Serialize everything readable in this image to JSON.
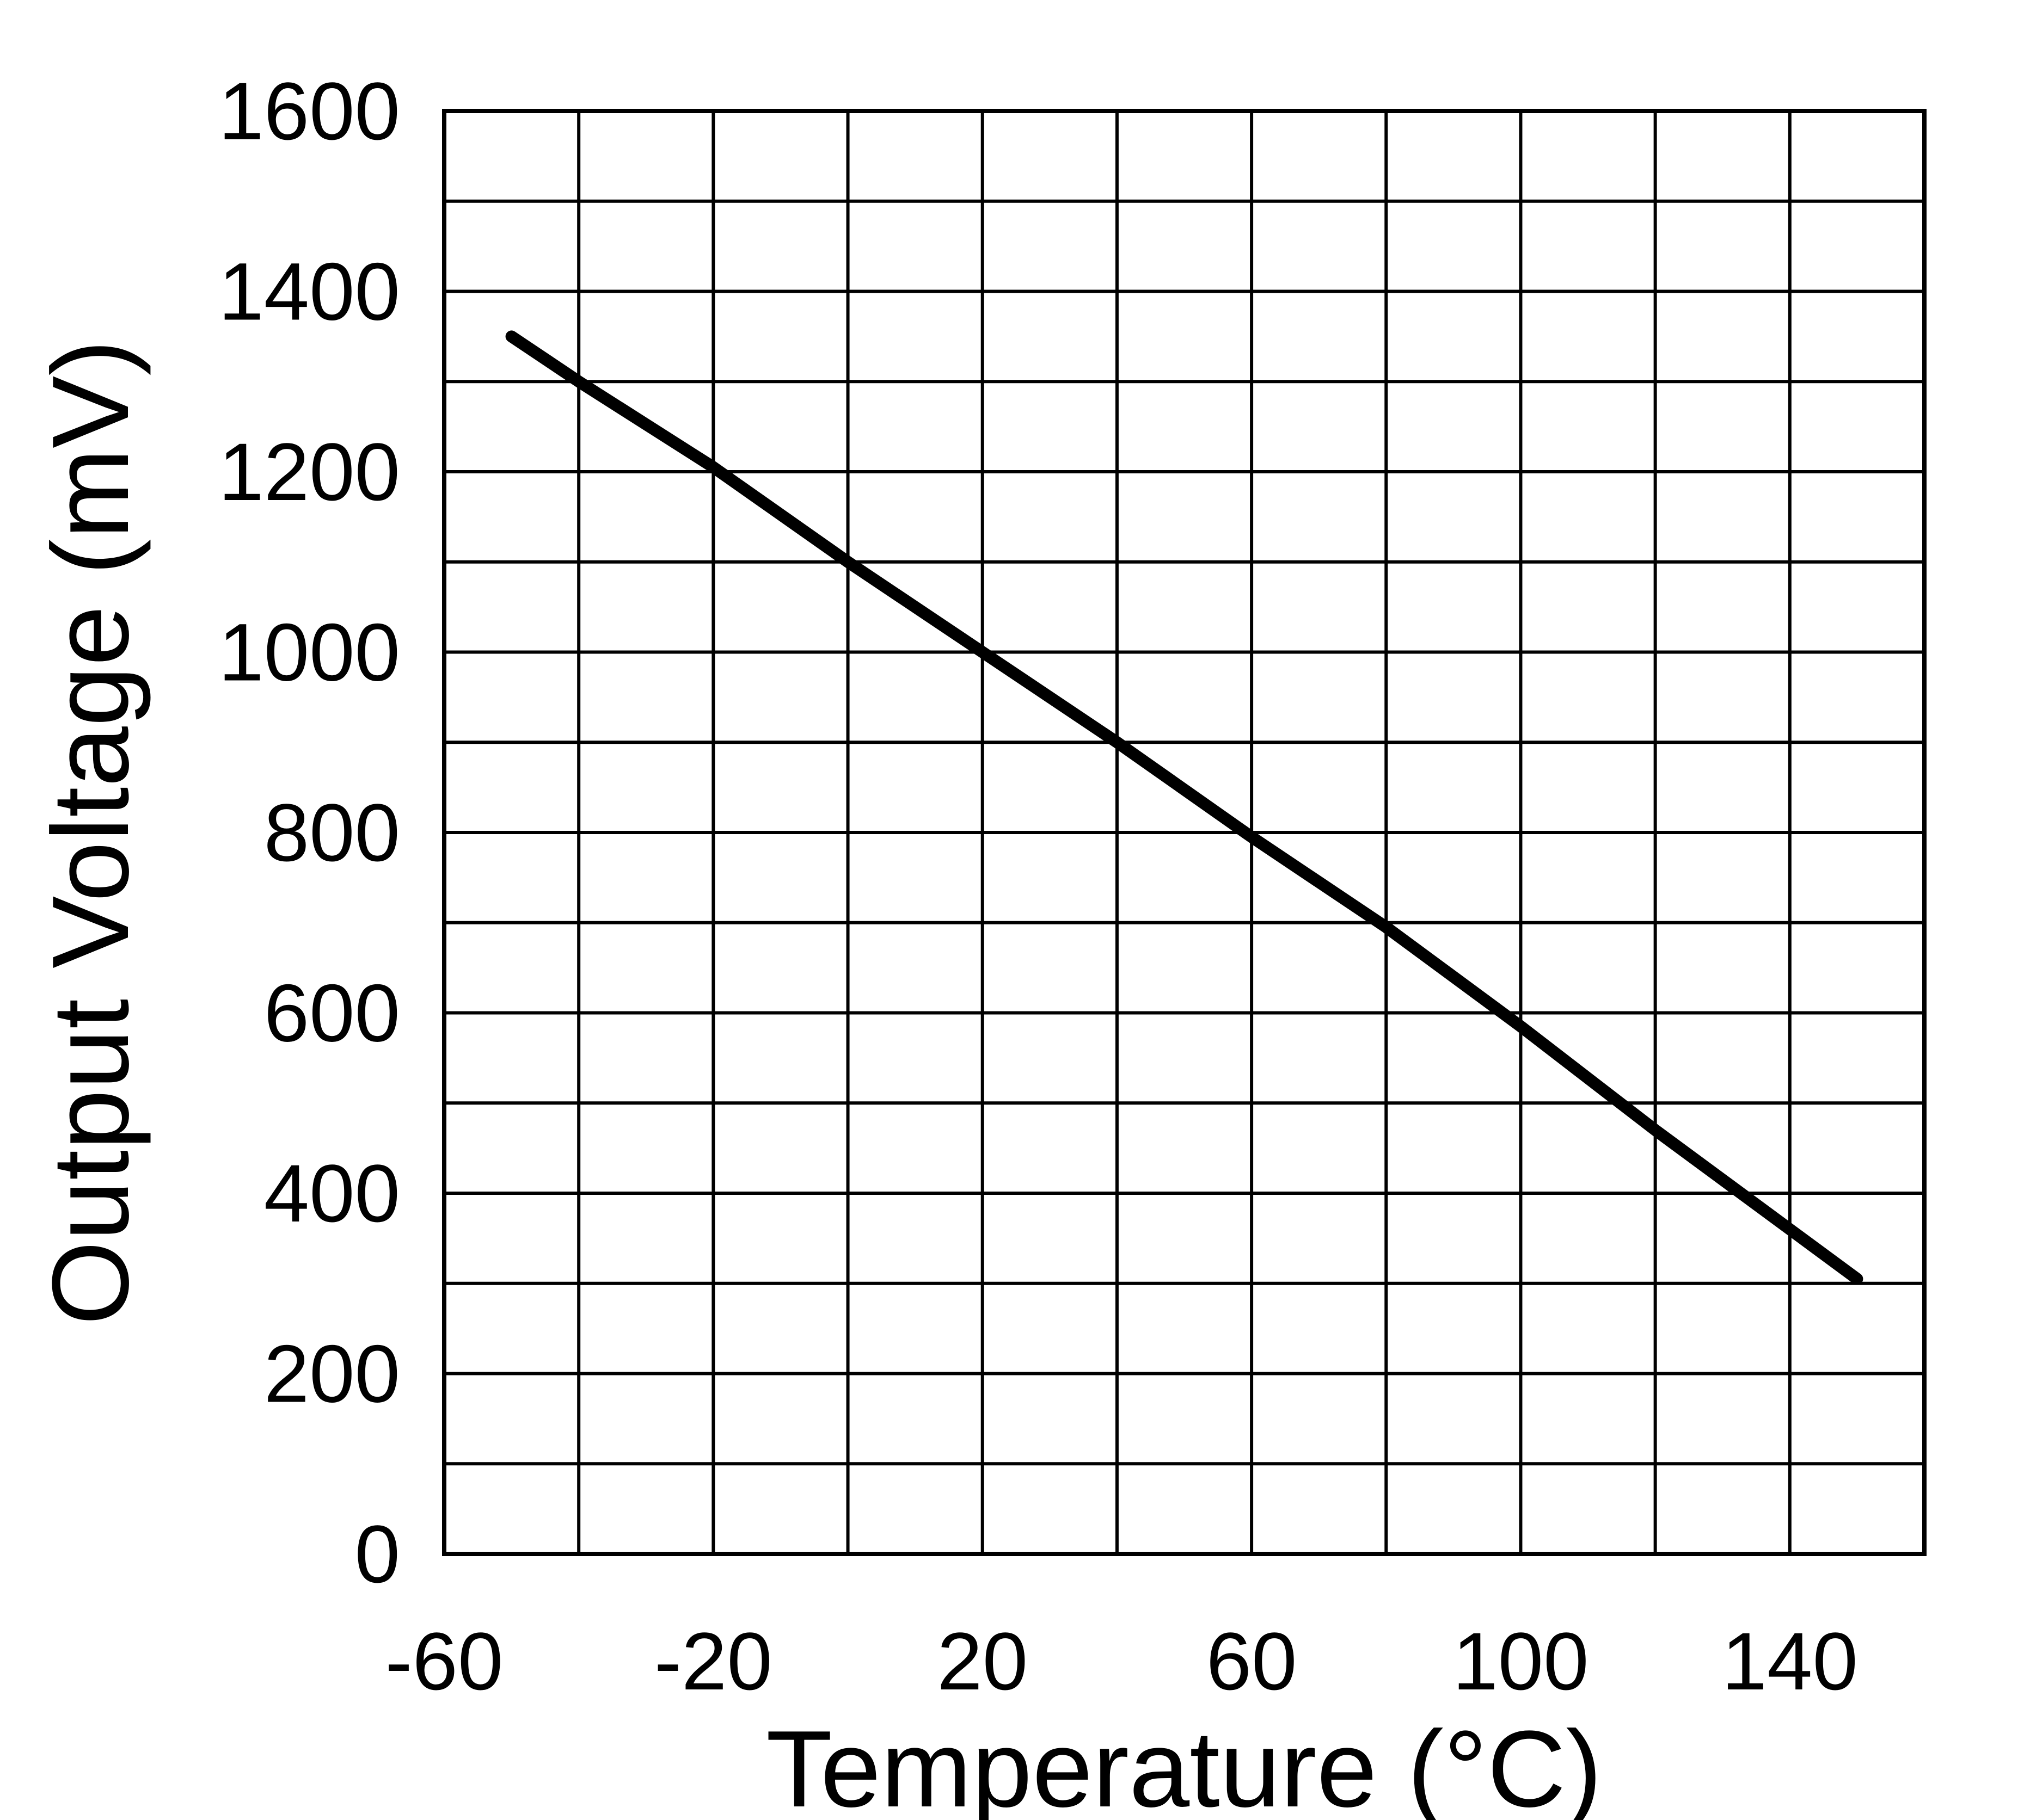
{
  "chart_data": {
    "type": "line",
    "title": "",
    "xlabel": "Temperature (°C)",
    "ylabel": "Output Voltage (mV)",
    "xlim": [
      -60,
      160
    ],
    "ylim": [
      0,
      1600
    ],
    "xticks": [
      -60,
      -20,
      20,
      60,
      100,
      140
    ],
    "xtick_labels": [
      "-60",
      "-20",
      "20",
      "60",
      "100",
      "140"
    ],
    "yticks": [
      0,
      200,
      400,
      600,
      800,
      1000,
      1200,
      1400,
      1600
    ],
    "ytick_labels": [
      "0",
      "200",
      "400",
      "600",
      "800",
      "1000",
      "1200",
      "1400",
      "1600"
    ],
    "grid": true,
    "x_grid_step": 20,
    "y_grid_step": 100,
    "series": [
      {
        "name": "Output Voltage",
        "color": "#000000",
        "x": [
          -50,
          -40,
          -20,
          0,
          20,
          40,
          60,
          80,
          100,
          120,
          150
        ],
        "y": [
          1350,
          1300,
          1205,
          1100,
          1000,
          900,
          795,
          695,
          585,
          470,
          305
        ]
      }
    ]
  }
}
